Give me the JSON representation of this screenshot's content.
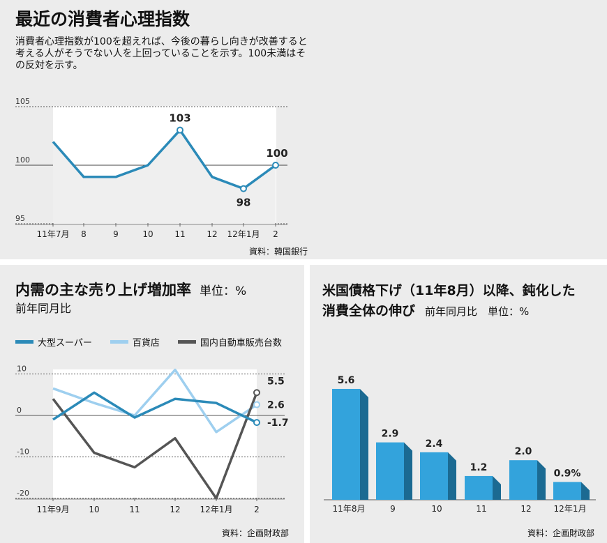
{
  "colors": {
    "panel_bg": "#ececec",
    "plot_bg": "#ffffff",
    "blue": "#2b8ab8",
    "light_blue": "#9ecfef",
    "dark_gray": "#555555",
    "bar_front": "#33a3dc",
    "bar_side": "#1b6a92"
  },
  "panel1": {
    "title": "最近の消費者心理指数",
    "subtitle": "消費者心理指数が100を超えれば、今後の暮らし向きが改善すると考える人がそうでない人を上回っていることを示す。100未満はその反対を示す。",
    "source": "資料：韓国銀行"
  },
  "panel2": {
    "title": "内需の主な売り上げ増加率",
    "unit": "単位：%",
    "subtitle": "前年同月比",
    "source": "資料：企画財政部"
  },
  "panel3": {
    "title_line1": "米国債格下げ（11年8月）以降、鈍化した",
    "title_line2": "消費全体の伸び",
    "subtitle": "前年同月比　単位：%",
    "source": "資料：企画財政部"
  },
  "chart_data": [
    {
      "type": "line",
      "title": "最近の消費者心理指数",
      "categories": [
        "11年7月",
        "8",
        "9",
        "10",
        "11",
        "12",
        "12年1月",
        "2"
      ],
      "series": [
        {
          "name": "消費者心理指数",
          "values": [
            102,
            99,
            99,
            100,
            103,
            99,
            98,
            100
          ]
        }
      ],
      "ylim": [
        95,
        105
      ],
      "yticks": [
        "95",
        "100",
        "105"
      ],
      "annotations": [
        {
          "index": 4,
          "label": "103"
        },
        {
          "index": 6,
          "label": "98"
        },
        {
          "index": 7,
          "label": "100"
        }
      ]
    },
    {
      "type": "line",
      "title": "内需の主な売り上げ増加率",
      "categories": [
        "11年9月",
        "10",
        "11",
        "12",
        "12年1月",
        "2"
      ],
      "series": [
        {
          "name": "大型スーパー",
          "values": [
            -1,
            5.5,
            -0.5,
            4,
            3,
            -1.7
          ]
        },
        {
          "name": "百貨店",
          "values": [
            6.5,
            3,
            0,
            11,
            -4,
            2.6
          ]
        },
        {
          "name": "国内自動車販売台数",
          "values": [
            4,
            -9,
            -12.5,
            -5.5,
            -20,
            5.5
          ]
        }
      ],
      "ylim": [
        -20,
        10
      ],
      "yticks": [
        "-20",
        "-10",
        "0",
        "10"
      ],
      "end_labels": [
        "-1.7",
        "2.6",
        "5.5"
      ]
    },
    {
      "type": "bar",
      "title": "米国債格下げ（11年8月）以降、鈍化した消費全体の伸び",
      "categories": [
        "11年8月",
        "9",
        "10",
        "11",
        "12",
        "12年1月"
      ],
      "values": [
        5.6,
        2.9,
        2.4,
        1.2,
        2.0,
        0.9
      ],
      "value_labels": [
        "5.6",
        "2.9",
        "2.4",
        "1.2",
        "2.0",
        "0.9%"
      ]
    }
  ]
}
